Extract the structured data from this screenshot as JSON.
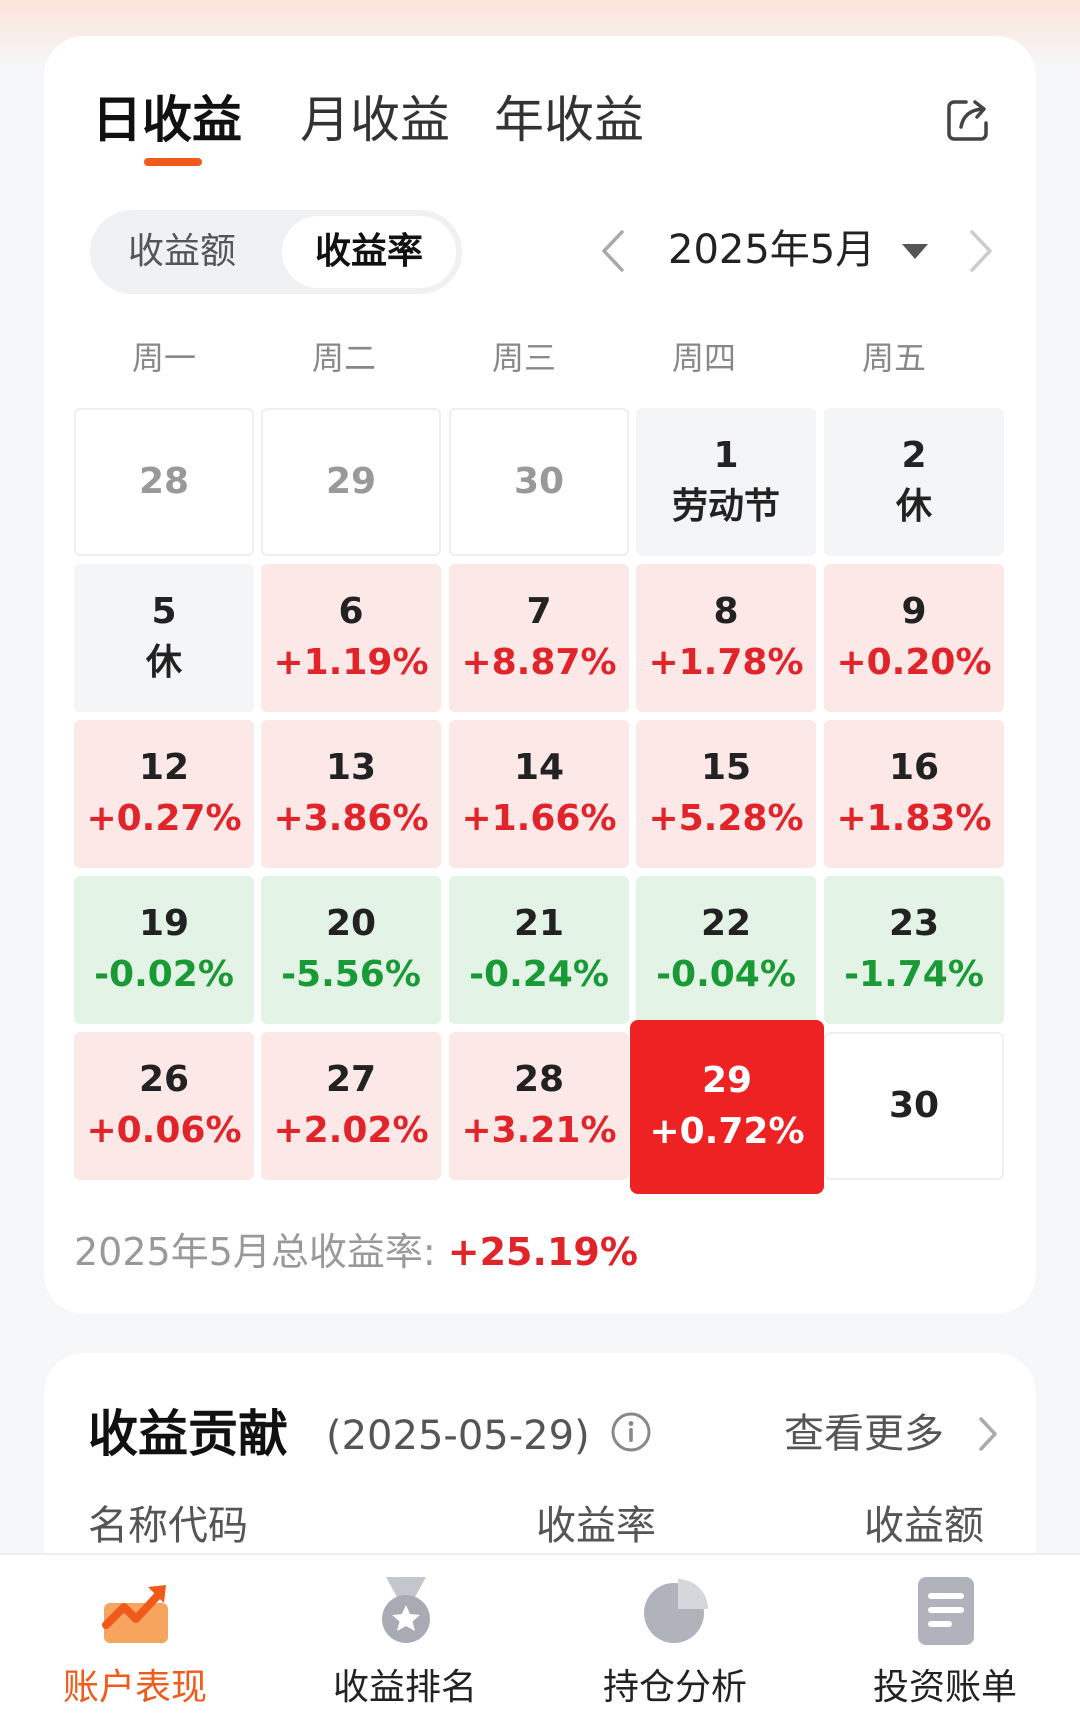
{
  "tabs": [
    "日收益",
    "月收益",
    "年收益"
  ],
  "toggle": {
    "amount": "收益额",
    "rate": "收益率"
  },
  "month_label": "2025年5月",
  "weekdays": [
    "周一",
    "周二",
    "周三",
    "周四",
    "周五"
  ],
  "calendar": [
    [
      {
        "day": "28",
        "value": "",
        "state": "out"
      },
      {
        "day": "29",
        "value": "",
        "state": "out"
      },
      {
        "day": "30",
        "value": "",
        "state": "out"
      },
      {
        "day": "1",
        "value": "劳动节",
        "state": "rest"
      },
      {
        "day": "2",
        "value": "休",
        "state": "rest"
      }
    ],
    [
      {
        "day": "5",
        "value": "休",
        "state": "rest"
      },
      {
        "day": "6",
        "value": "+1.19%",
        "state": "up"
      },
      {
        "day": "7",
        "value": "+8.87%",
        "state": "up"
      },
      {
        "day": "8",
        "value": "+1.78%",
        "state": "up"
      },
      {
        "day": "9",
        "value": "+0.20%",
        "state": "up"
      }
    ],
    [
      {
        "day": "12",
        "value": "+0.27%",
        "state": "up"
      },
      {
        "day": "13",
        "value": "+3.86%",
        "state": "up"
      },
      {
        "day": "14",
        "value": "+1.66%",
        "state": "up"
      },
      {
        "day": "15",
        "value": "+5.28%",
        "state": "up"
      },
      {
        "day": "16",
        "value": "+1.83%",
        "state": "up"
      }
    ],
    [
      {
        "day": "19",
        "value": "-0.02%",
        "state": "down"
      },
      {
        "day": "20",
        "value": "-5.56%",
        "state": "down"
      },
      {
        "day": "21",
        "value": "-0.24%",
        "state": "down"
      },
      {
        "day": "22",
        "value": "-0.04%",
        "state": "down"
      },
      {
        "day": "23",
        "value": "-1.74%",
        "state": "down"
      }
    ],
    [
      {
        "day": "26",
        "value": "+0.06%",
        "state": "up"
      },
      {
        "day": "27",
        "value": "+2.02%",
        "state": "up"
      },
      {
        "day": "28",
        "value": "+3.21%",
        "state": "up"
      },
      {
        "day": "29",
        "value": "+0.72%",
        "state": "sel"
      },
      {
        "day": "30",
        "value": "",
        "state": "future"
      }
    ]
  ],
  "total": {
    "label": "2025年5月总收益率: ",
    "value": "+25.19%"
  },
  "contribution": {
    "title": "收益贡献",
    "date": "(2025-05-29)",
    "more": "查看更多",
    "columns": [
      "名称代码",
      "收益率",
      "收益额"
    ]
  },
  "nav": [
    {
      "label": "账户表现",
      "icon": "trend-chart-icon",
      "active": true
    },
    {
      "label": "收益排名",
      "icon": "medal-icon",
      "active": false
    },
    {
      "label": "持仓分析",
      "icon": "pie-chart-icon",
      "active": false
    },
    {
      "label": "投资账单",
      "icon": "bill-icon",
      "active": false
    }
  ],
  "colors": {
    "accent": "#f05a1a",
    "up": "#e0242a",
    "down": "#1a9a36",
    "selected": "#ee2222"
  }
}
